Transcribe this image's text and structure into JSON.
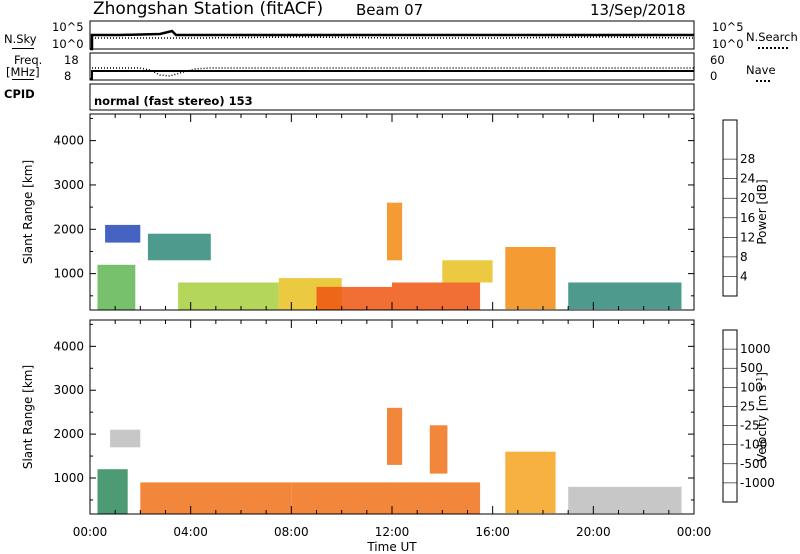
{
  "header": {
    "title": "Zhongshan Station (fitACF)",
    "beam": "Beam 07",
    "date": "13/Sep/2018"
  },
  "panels": {
    "noise": {
      "left_label": "N.Sky",
      "right_label": "N.Search",
      "left_ticks": [
        "10^5",
        "10^0"
      ],
      "right_ticks": [
        "10^5",
        "10^0"
      ]
    },
    "freq": {
      "left_label_1": "Freq.",
      "left_label_2": "[MHz]",
      "left_ticks": [
        "18",
        "8"
      ],
      "right_label": "Nave",
      "right_ticks": [
        "60",
        "0"
      ]
    },
    "cpid": {
      "label": "CPID",
      "value": "normal (fast stereo) 153"
    }
  },
  "chart_data": [
    {
      "type": "heatmap",
      "title": "",
      "quantity": "Power",
      "ylabel": "Slant Range [km]",
      "xlabel": "",
      "y_ticks": [
        1000,
        2000,
        3000,
        4000
      ],
      "ylim": [
        180,
        4600
      ],
      "x_hours": [
        0,
        4,
        8,
        12,
        16,
        20,
        24
      ],
      "colorbar": {
        "label": "Power [dB]",
        "ticks": [
          "4",
          "8",
          "12",
          "16",
          "20",
          "24",
          "28"
        ],
        "colors": [
          "#1410ff",
          "#2448b8",
          "#2f8a7a",
          "#5fb552",
          "#a6cf3e",
          "#e8c020",
          "#f28a10",
          "#ee5612",
          "#e8180e"
        ]
      },
      "cells": [
        {
          "t0": 0.3,
          "t1": 1.8,
          "r0": 180,
          "r1": 1200,
          "c": 3
        },
        {
          "t0": 0.6,
          "t1": 2.0,
          "r0": 1700,
          "r1": 2100,
          "c": 1
        },
        {
          "t0": 2.3,
          "t1": 4.8,
          "r0": 1300,
          "r1": 1900,
          "c": 2
        },
        {
          "t0": 3.5,
          "t1": 7.5,
          "r0": 180,
          "r1": 800,
          "c": 4
        },
        {
          "t0": 7.5,
          "t1": 10.0,
          "r0": 180,
          "r1": 900,
          "c": 5
        },
        {
          "t0": 9.0,
          "t1": 12.0,
          "r0": 180,
          "r1": 700,
          "c": 7
        },
        {
          "t0": 11.8,
          "t1": 12.4,
          "r0": 1300,
          "r1": 2600,
          "c": 6
        },
        {
          "t0": 12.0,
          "t1": 15.5,
          "r0": 180,
          "r1": 800,
          "c": 7
        },
        {
          "t0": 14.0,
          "t1": 16.0,
          "r0": 800,
          "r1": 1300,
          "c": 5
        },
        {
          "t0": 16.5,
          "t1": 18.5,
          "r0": 200,
          "r1": 1600,
          "c": 6
        },
        {
          "t0": 19.0,
          "t1": 23.5,
          "r0": 200,
          "r1": 800,
          "c": 2
        }
      ]
    },
    {
      "type": "heatmap",
      "title": "",
      "quantity": "Velocity",
      "ylabel": "Slant Range [km]",
      "xlabel": "Time UT",
      "y_ticks": [
        1000,
        2000,
        3000,
        4000
      ],
      "ylim": [
        180,
        4600
      ],
      "x_ticks": [
        "00:00",
        "04:00",
        "08:00",
        "12:00",
        "16:00",
        "20:00",
        "00:00"
      ],
      "colorbar": {
        "label": "Velocity",
        "label_units": "[m s",
        "label_units_sup": "-1",
        "label_units_end": "]",
        "ticks": [
          "-1000",
          "-500",
          "-100",
          "-25",
          "25",
          "100",
          "500",
          "1000"
        ],
        "colors": [
          "#e81210",
          "#ef3d12",
          "#f0721a",
          "#f5a31e",
          "#bdbdbd",
          "#55c43a",
          "#2e8a5c",
          "#2c55b4",
          "#1238d8"
        ]
      },
      "cells": [
        {
          "t0": 0.3,
          "t1": 1.5,
          "r0": 180,
          "r1": 1200,
          "c": 6
        },
        {
          "t0": 0.8,
          "t1": 2.0,
          "r0": 1700,
          "r1": 2100,
          "c": 4
        },
        {
          "t0": 2.0,
          "t1": 8.0,
          "r0": 180,
          "r1": 900,
          "c": 2
        },
        {
          "t0": 8.0,
          "t1": 15.5,
          "r0": 180,
          "r1": 900,
          "c": 2
        },
        {
          "t0": 11.8,
          "t1": 12.4,
          "r0": 1300,
          "r1": 2600,
          "c": 2
        },
        {
          "t0": 13.5,
          "t1": 14.2,
          "r0": 1100,
          "r1": 2200,
          "c": 2
        },
        {
          "t0": 16.5,
          "t1": 18.5,
          "r0": 200,
          "r1": 1600,
          "c": 3
        },
        {
          "t0": 19.0,
          "t1": 23.5,
          "r0": 200,
          "r1": 800,
          "c": 4
        }
      ]
    }
  ]
}
